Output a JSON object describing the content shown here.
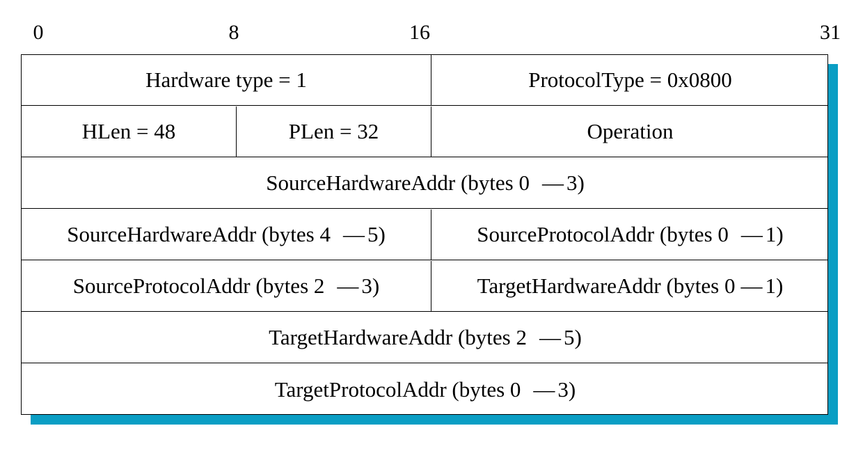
{
  "bit_markers": [
    "0",
    "8",
    "16",
    "31"
  ],
  "rows": [
    {
      "cells": [
        {
          "text": "Hardware type = 1"
        },
        {
          "text": "ProtocolType = 0x0800"
        }
      ]
    },
    {
      "cells": [
        {
          "text": "HLen = 48"
        },
        {
          "text": "PLen = 32"
        },
        {
          "text": "Operation"
        }
      ]
    },
    {
      "cells": [
        {
          "prefix": "SourceHardwareAddr (bytes 0",
          "dash": "—",
          "suffix": "3)"
        }
      ]
    },
    {
      "cells": [
        {
          "prefix": "SourceHardwareAddr (bytes 4",
          "dash": "—",
          "suffix": "5)"
        },
        {
          "prefix": "SourceProtocolAddr (bytes 0",
          "dash": "—",
          "suffix": "1)"
        }
      ]
    },
    {
      "cells": [
        {
          "prefix": "SourceProtocolAddr (bytes 2",
          "dash": "—",
          "suffix": "3)"
        },
        {
          "prefix": "TargetHardwareAddr (bytes 0",
          "dash": "—",
          "suffix": "1)"
        }
      ]
    },
    {
      "cells": [
        {
          "prefix": "TargetHardwareAddr (bytes 2",
          "dash": "—",
          "suffix": "5)"
        }
      ]
    },
    {
      "cells": [
        {
          "prefix": "TargetProtocolAddr (bytes 0",
          "dash": "—",
          "suffix": "3)"
        }
      ]
    }
  ],
  "colors": {
    "shadow": "#0a9ec4",
    "border": "#000000",
    "background": "#ffffff"
  }
}
